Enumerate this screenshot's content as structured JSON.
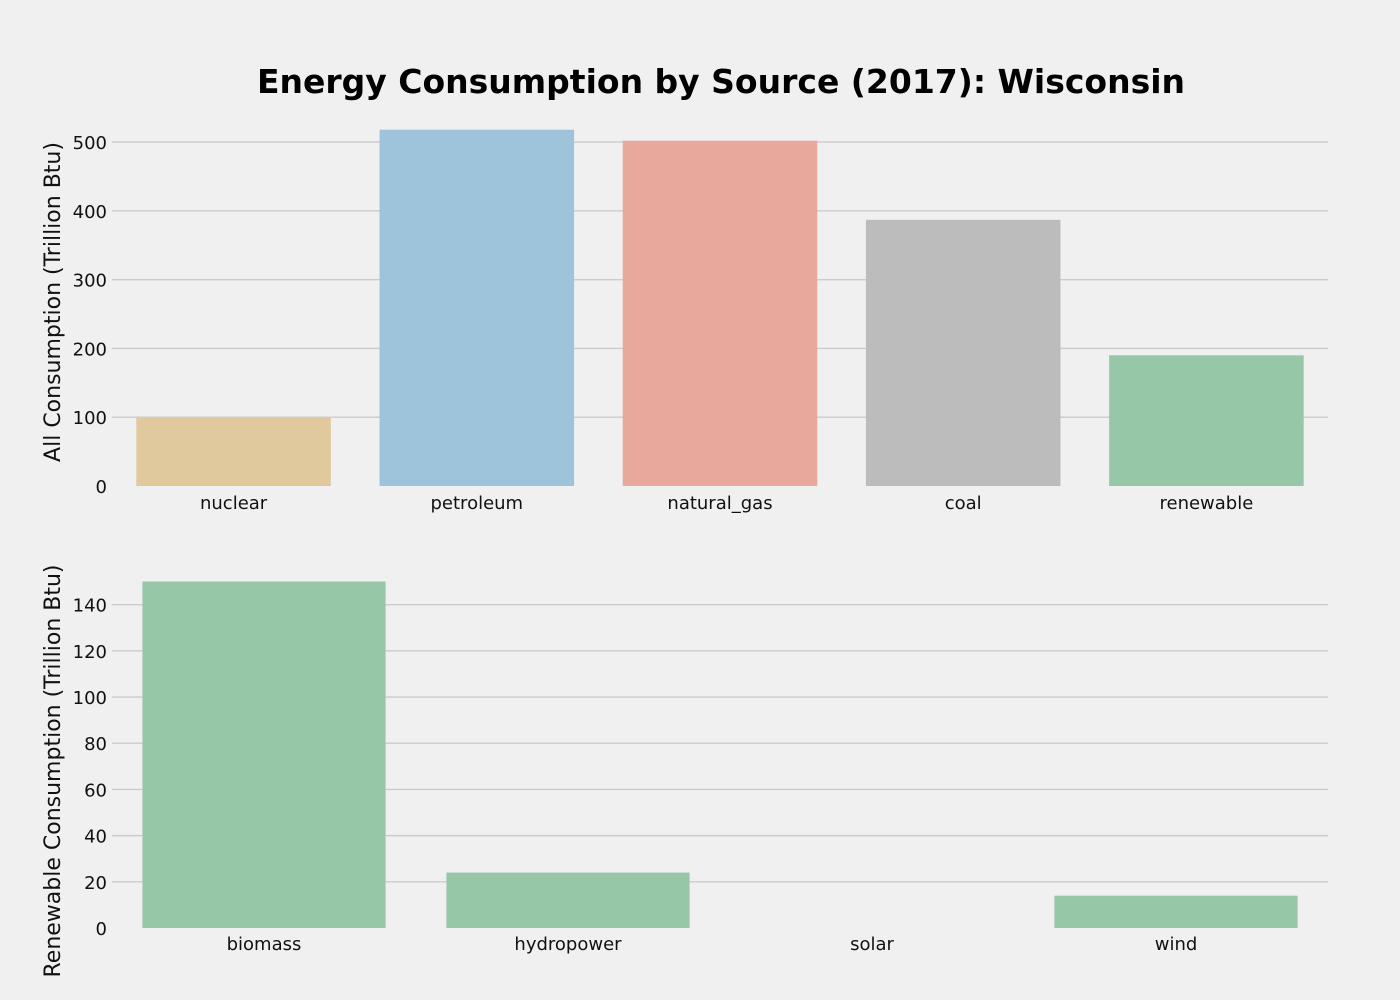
{
  "chart_data": {
    "title": "Energy Consumption by Source (2017): Wisconsin",
    "panels": [
      {
        "type": "bar",
        "ylabel": "All Consumption (Trillion Btu)",
        "xlabel": "",
        "categories": [
          "nuclear",
          "petroleum",
          "natural_gas",
          "coal",
          "renewable"
        ],
        "values": [
          100,
          518,
          502,
          387,
          190
        ],
        "colors": [
          "#e0c99d",
          "#9ec4dc",
          "#e8a99c",
          "#bcbcbc",
          "#96c8a8"
        ],
        "ylim": [
          0,
          535
        ],
        "yticks": [
          0,
          100,
          200,
          300,
          400,
          500
        ],
        "grid": true
      },
      {
        "type": "bar",
        "ylabel": "Renewable Consumption (Trillion Btu)",
        "xlabel": "",
        "categories": [
          "biomass",
          "hydropower",
          "solar",
          "wind"
        ],
        "values": [
          150,
          24,
          0,
          14
        ],
        "colors": [
          "#96c8a8",
          "#96c8a8",
          "#96c8a8",
          "#96c8a8"
        ],
        "ylim": [
          0,
          155
        ],
        "yticks": [
          0,
          20,
          40,
          60,
          80,
          100,
          120,
          140
        ],
        "grid": true
      }
    ]
  }
}
